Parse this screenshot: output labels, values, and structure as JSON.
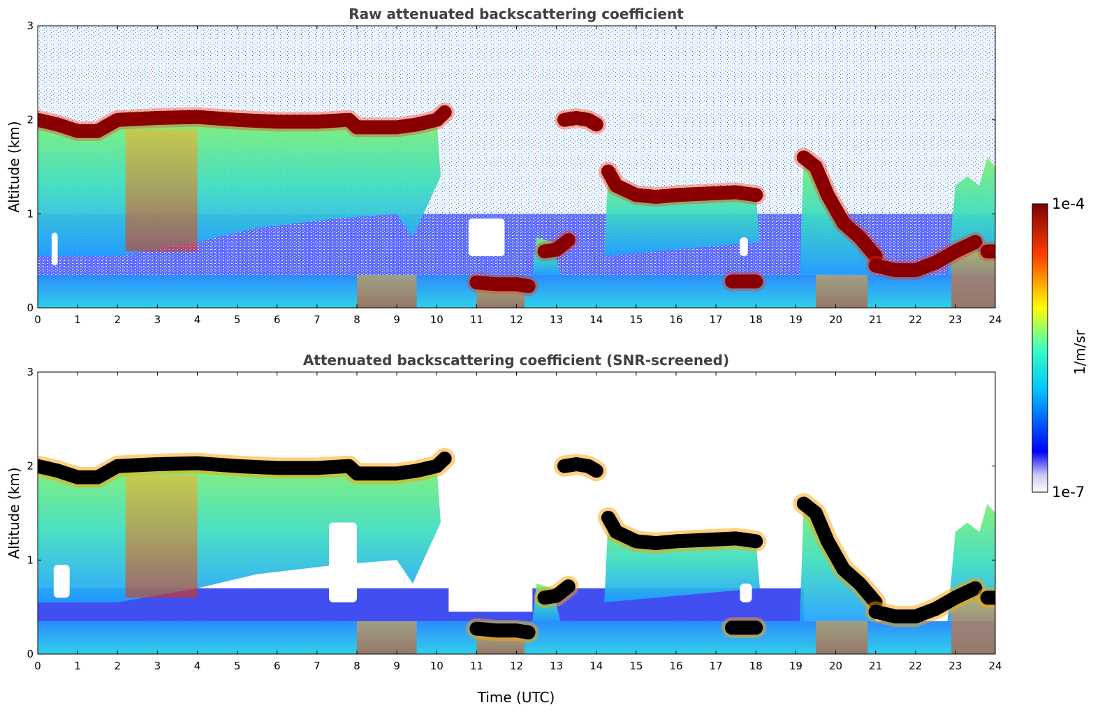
{
  "chart_data": [
    {
      "type": "heatmap",
      "title": "Raw attenuated backscattering coefficient",
      "xlabel": "",
      "ylabel": "Altitude (km)",
      "xlim": [
        0,
        24
      ],
      "ylim": [
        0,
        3
      ],
      "x_ticks": [
        "0",
        "1",
        "2",
        "3",
        "4",
        "5",
        "6",
        "7",
        "8",
        "9",
        "10",
        "11",
        "12",
        "13",
        "14",
        "15",
        "16",
        "17",
        "18",
        "19",
        "20",
        "21",
        "22",
        "23",
        "24"
      ],
      "y_ticks": [
        "0",
        "1",
        "2",
        "3"
      ],
      "cloud_layers": [
        {
          "x": [
            0,
            0.5,
            1,
            1.5,
            2,
            3,
            4,
            5,
            6,
            7,
            7.8,
            8,
            9,
            9.5,
            10,
            10.2
          ],
          "y": [
            2.0,
            1.95,
            1.88,
            1.88,
            2.0,
            2.02,
            2.03,
            2.0,
            1.98,
            1.98,
            2.0,
            1.92,
            1.92,
            1.95,
            2.0,
            2.08
          ]
        },
        {
          "x": [
            13.2,
            13.5,
            13.8,
            14.0
          ],
          "y": [
            2.0,
            2.02,
            2.0,
            1.95
          ]
        },
        {
          "x": [
            14.3,
            14.5,
            15,
            15.5,
            16,
            17,
            17.5,
            18
          ],
          "y": [
            1.45,
            1.3,
            1.2,
            1.18,
            1.2,
            1.22,
            1.23,
            1.2
          ]
        },
        {
          "x": [
            19.2,
            19.5,
            19.8,
            20.2,
            20.6,
            21.0
          ],
          "y": [
            1.6,
            1.5,
            1.2,
            0.9,
            0.75,
            0.55
          ]
        },
        {
          "x": [
            21.0,
            21.5,
            22,
            22.5,
            23,
            23.5
          ],
          "y": [
            0.45,
            0.4,
            0.4,
            0.48,
            0.6,
            0.7
          ]
        },
        {
          "x": [
            11,
            11.5,
            12,
            12.3
          ],
          "y": [
            0.27,
            0.25,
            0.25,
            0.23
          ]
        },
        {
          "x": [
            12.7,
            13.0,
            13.3
          ],
          "y": [
            0.6,
            0.62,
            0.72
          ]
        },
        {
          "x": [
            17.4,
            17.7,
            18.0
          ],
          "y": [
            0.28,
            0.28,
            0.28
          ]
        },
        {
          "x": [
            23.8,
            24.0
          ],
          "y": [
            0.6,
            0.6
          ]
        }
      ]
    },
    {
      "type": "heatmap",
      "title": "Attenuated backscattering coefficient (SNR-screened)",
      "xlabel": "Time (UTC)",
      "ylabel": "Altitude (km)",
      "xlim": [
        0,
        24
      ],
      "ylim": [
        0,
        3
      ],
      "x_ticks": [
        "0",
        "1",
        "2",
        "3",
        "4",
        "5",
        "6",
        "7",
        "8",
        "9",
        "10",
        "11",
        "12",
        "13",
        "14",
        "15",
        "16",
        "17",
        "18",
        "19",
        "20",
        "21",
        "22",
        "23",
        "24"
      ],
      "y_ticks": [
        "0",
        "1",
        "2",
        "3"
      ]
    }
  ],
  "colorbar": {
    "label": "1/m/sr",
    "max_label": "1e-4",
    "min_label": "1e-7",
    "scale": "log",
    "colormap": "jet"
  }
}
